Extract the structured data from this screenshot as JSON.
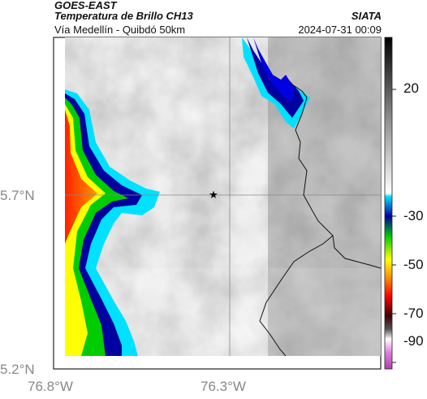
{
  "header": {
    "satellite": "GOES-EAST",
    "product": "Temperatura de Brillo CH13",
    "location": "Vía Medellín - Quibdó 50km",
    "brand": "SIATA",
    "datetime": "2024-07-31 00:09"
  },
  "map": {
    "lat_ticks": [
      "5.7°N",
      "5.2°N"
    ],
    "lon_ticks": [
      "76.8°W",
      "76.3°W"
    ],
    "marker": "star-icon",
    "gridlines": true
  },
  "colorbar": {
    "tick_labels": [
      "20",
      "-30",
      "-50",
      "-70",
      "-90"
    ],
    "palette": [
      "#e060e0",
      "#ff0000",
      "#ff9900",
      "#ffff00",
      "#00cc00",
      "#0000a0",
      "#00e0ff",
      "#808080",
      "#000000"
    ]
  }
}
